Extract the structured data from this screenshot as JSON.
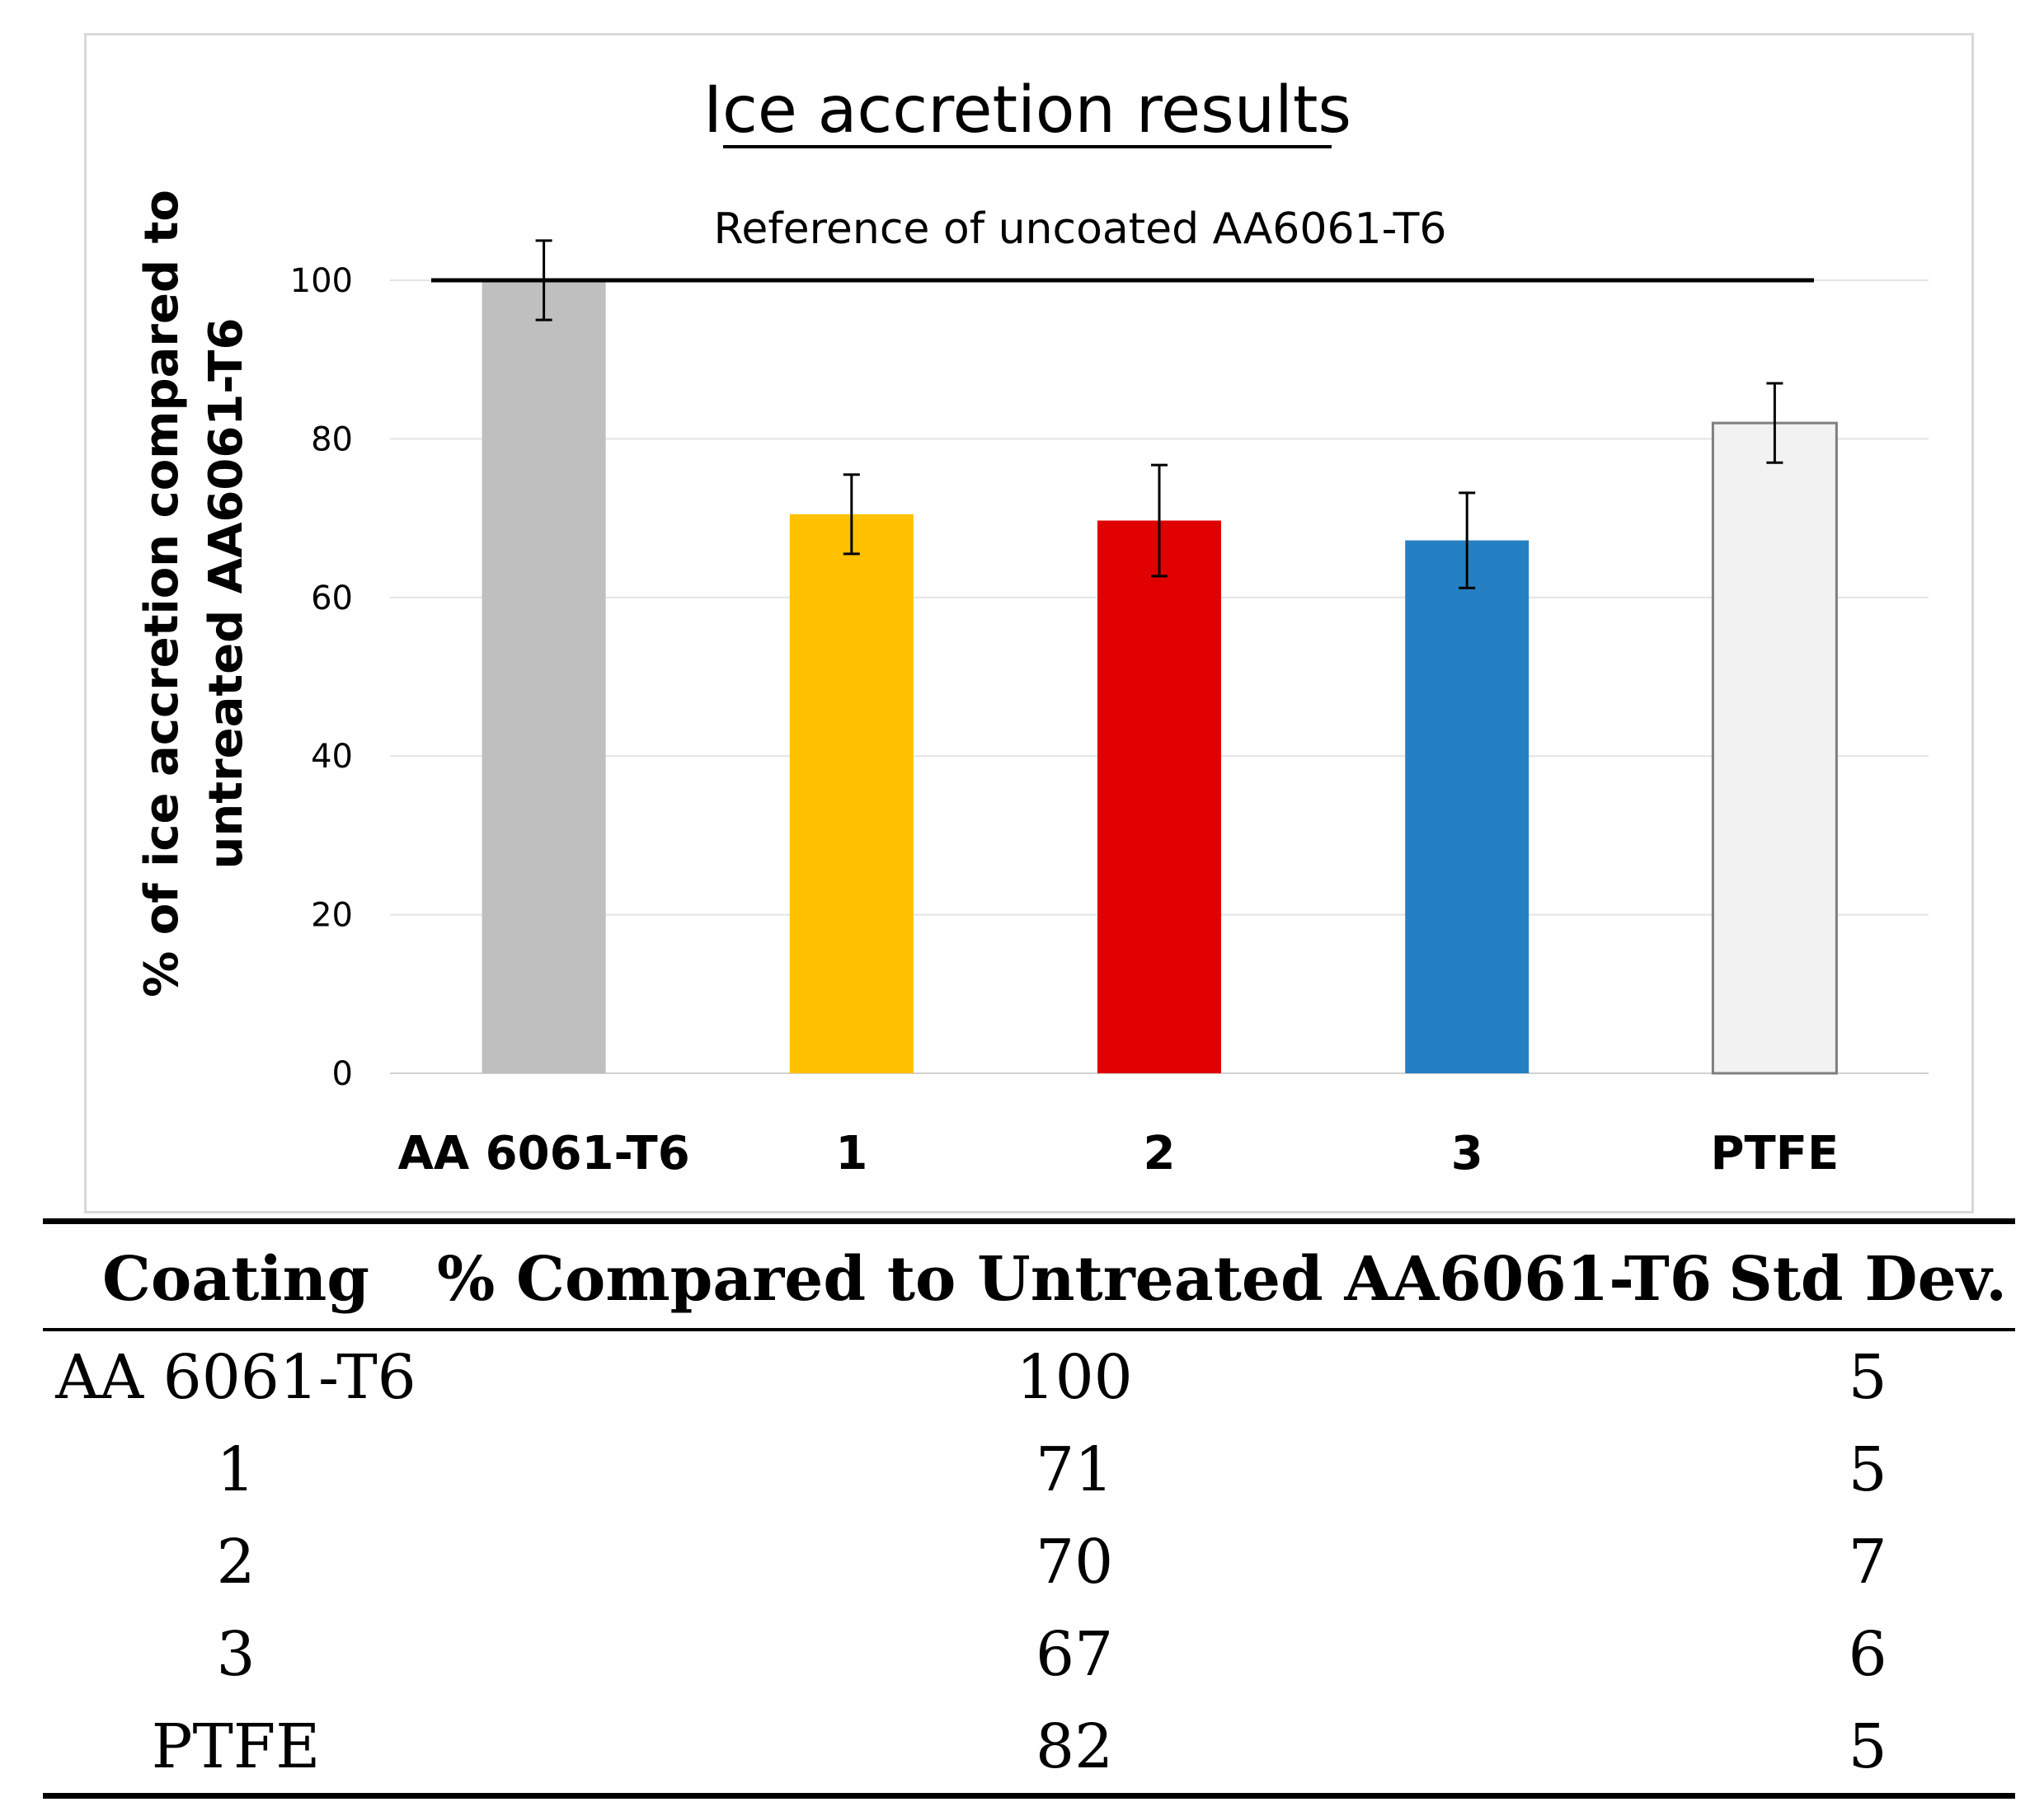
{
  "chart_data": {
    "type": "bar",
    "title": "Ice accretion results",
    "xlabel": "",
    "ylabel": "% of ice accretion compared to untreated AA6061-T6",
    "categories": [
      "AA 6061-T6",
      "1",
      "2",
      "3",
      "PTFE"
    ],
    "values": [
      100,
      70.5,
      69.7,
      67.2,
      82
    ],
    "error": [
      5,
      5,
      7,
      6,
      5
    ],
    "colors": [
      "#bfbfbf",
      "#ffc000",
      "#e00000",
      "#2580c3",
      "#f2f2f2"
    ],
    "outlined": [
      false,
      false,
      false,
      false,
      true
    ],
    "ylim": [
      0,
      100
    ],
    "yticks": [
      0,
      20,
      40,
      60,
      80,
      100
    ],
    "grid": true,
    "reference_line": {
      "value": 100,
      "label": "Reference of uncoated AA6061-T6"
    }
  },
  "table": {
    "headers": [
      "Coating",
      "% Compared to Untreated AA6061-T6",
      "Std Dev."
    ],
    "rows": [
      [
        "AA 6061-T6",
        "100",
        "5"
      ],
      [
        "1",
        "71",
        "5"
      ],
      [
        "2",
        "70",
        "7"
      ],
      [
        "3",
        "67",
        "6"
      ],
      [
        "PTFE",
        "82",
        "5"
      ]
    ]
  }
}
